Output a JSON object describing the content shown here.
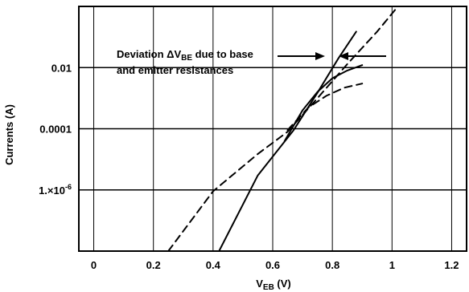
{
  "chart_data": {
    "type": "line",
    "xlabel": "V",
    "xlabel_sub": "EB",
    "xlabel_unit": " (V)",
    "ylabel": "Currents (A)",
    "xlim": [
      -0.05,
      1.25
    ],
    "ylim": [
      1e-08,
      1
    ],
    "y_scale": "log",
    "grid": true,
    "x_ticks": [
      {
        "value": 0,
        "label": "0"
      },
      {
        "value": 0.2,
        "label": "0.2"
      },
      {
        "value": 0.4,
        "label": "0.4"
      },
      {
        "value": 0.6,
        "label": "0.6"
      },
      {
        "value": 0.8,
        "label": "0.8"
      },
      {
        "value": 1.0,
        "label": "1"
      },
      {
        "value": 1.2,
        "label": "1.2"
      }
    ],
    "y_ticks": [
      {
        "value": 0.01,
        "label": "0.01"
      },
      {
        "value": 0.0001,
        "label": "0.0001"
      },
      {
        "value": 1e-06,
        "label": "1.×10",
        "exp": "-6"
      }
    ],
    "series": [
      {
        "style": "solid",
        "x": [
          0.42,
          0.55,
          0.67,
          0.75,
          0.82,
          0.88
        ],
        "y": [
          1e-08,
          3e-06,
          9e-05,
          0.0015,
          0.02,
          0.15
        ]
      },
      {
        "style": "solid",
        "x": [
          0.64,
          0.7,
          0.75,
          0.8,
          0.85,
          0.9
        ],
        "y": [
          4e-05,
          0.0004,
          0.0016,
          0.0045,
          0.008,
          0.012
        ]
      },
      {
        "style": "dashed",
        "x": [
          0.25,
          0.4,
          0.55,
          0.65,
          0.75,
          0.85,
          0.95,
          1.02
        ],
        "y": [
          1e-08,
          9e-07,
          1.5e-05,
          8e-05,
          0.001,
          0.013,
          0.15,
          1.0
        ]
      },
      {
        "style": "dashed",
        "x": [
          0.65,
          0.72,
          0.78,
          0.84,
          0.9
        ],
        "y": [
          9e-05,
          0.0005,
          0.0012,
          0.0022,
          0.003
        ]
      }
    ],
    "annotation": {
      "line1_a": "Deviation ΔV",
      "line1_sub": "BE",
      "line1_b": " due to base",
      "line2": "and emitter resistances"
    }
  }
}
